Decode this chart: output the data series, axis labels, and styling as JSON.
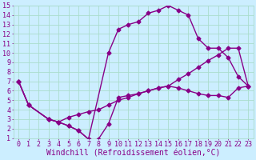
{
  "xlabel": "Windchill (Refroidissement éolien,°C)",
  "xlim": [
    -0.5,
    23.5
  ],
  "ylim": [
    1,
    15
  ],
  "xticks": [
    0,
    1,
    2,
    3,
    4,
    5,
    6,
    7,
    8,
    9,
    10,
    11,
    12,
    13,
    14,
    15,
    16,
    17,
    18,
    19,
    20,
    21,
    22,
    23
  ],
  "yticks": [
    1,
    2,
    3,
    4,
    5,
    6,
    7,
    8,
    9,
    10,
    11,
    12,
    13,
    14,
    15
  ],
  "bg_color": "#cceeff",
  "grid_color": "#aaddcc",
  "line_color": "#880088",
  "line1_x": [
    0,
    1,
    3,
    4,
    5,
    6,
    7,
    8,
    9,
    10,
    11,
    12,
    13,
    14,
    15,
    16,
    17,
    18,
    19,
    20,
    21,
    22,
    23
  ],
  "line1_y": [
    7,
    4.5,
    3.0,
    2.7,
    2.3,
    1.8,
    0.9,
    0.9,
    2.5,
    5.3,
    5.5,
    5.7,
    6.0,
    6.3,
    6.5,
    6.3,
    6.0,
    5.7,
    5.5,
    5.5,
    5.3,
    6.3,
    6.5
  ],
  "line2_x": [
    0,
    1,
    3,
    4,
    5,
    6,
    7,
    9,
    10,
    11,
    12,
    13,
    14,
    15,
    16,
    17,
    18,
    19,
    20,
    21,
    22,
    23
  ],
  "line2_y": [
    7,
    4.5,
    3.0,
    2.7,
    2.3,
    1.8,
    0.9,
    10.0,
    12.5,
    13.0,
    13.3,
    14.2,
    14.5,
    15.0,
    14.5,
    14.0,
    11.5,
    10.5,
    10.5,
    9.5,
    7.5,
    6.5
  ],
  "line3_x": [
    0,
    1,
    3,
    4,
    5,
    6,
    7,
    8,
    9,
    10,
    11,
    12,
    13,
    14,
    15,
    16,
    17,
    18,
    19,
    20,
    21,
    22,
    23
  ],
  "line3_y": [
    7,
    4.5,
    3.0,
    2.7,
    3.2,
    3.5,
    3.8,
    4.0,
    4.5,
    5.0,
    5.3,
    5.7,
    6.0,
    6.3,
    6.5,
    7.2,
    7.8,
    8.5,
    9.2,
    9.8,
    10.5,
    10.5,
    6.5
  ],
  "marker": "D",
  "markersize": 2.5,
  "linewidth": 1.0,
  "font_size": 7,
  "tick_label_size": 6
}
